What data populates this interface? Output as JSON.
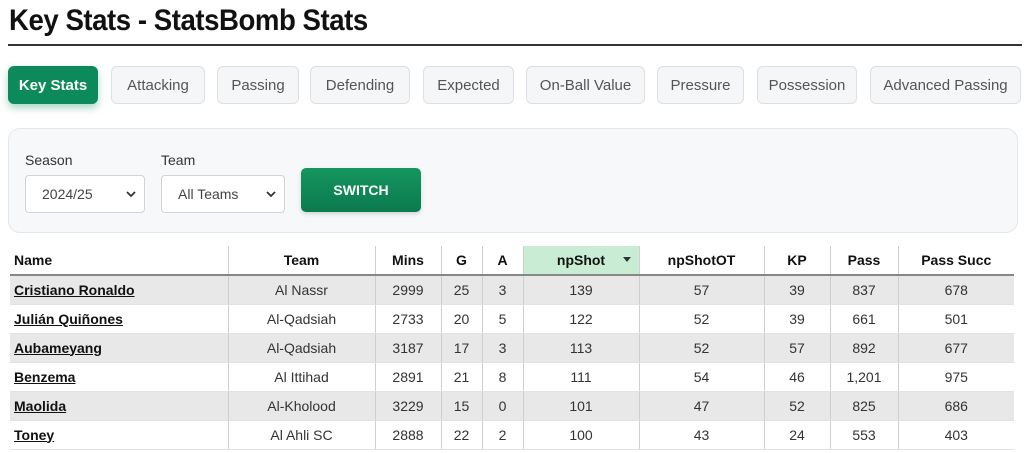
{
  "page": {
    "title": "Key Stats - StatsBomb Stats"
  },
  "tabs": [
    {
      "label": "Key Stats",
      "active": true
    },
    {
      "label": "Attacking",
      "active": false
    },
    {
      "label": "Passing",
      "active": false
    },
    {
      "label": "Defending",
      "active": false
    },
    {
      "label": "Expected",
      "active": false
    },
    {
      "label": "On-Ball Value",
      "active": false
    },
    {
      "label": "Pressure",
      "active": false
    },
    {
      "label": "Possession",
      "active": false
    },
    {
      "label": "Advanced Passing",
      "active": false
    }
  ],
  "filters": {
    "season_label": "Season",
    "season_value": "2024/25",
    "team_label": "Team",
    "team_value": "All Teams",
    "switch_label": "SWITCH"
  },
  "colors": {
    "accent": "#0d8a5b",
    "sorted_header": "#c9ecd5",
    "row_alt": "#e8e8e8"
  },
  "table": {
    "sorted_column": "npShot",
    "headers": [
      "Name",
      "Team",
      "Mins",
      "G",
      "A",
      "npShot",
      "npShotOT",
      "KP",
      "Pass",
      "Pass Succ"
    ],
    "rows": [
      [
        "Cristiano Ronaldo",
        "Al Nassr",
        "2999",
        "25",
        "3",
        "139",
        "57",
        "39",
        "837",
        "678"
      ],
      [
        "Julián Quiñones",
        "Al-Qadsiah",
        "2733",
        "20",
        "5",
        "122",
        "52",
        "39",
        "661",
        "501"
      ],
      [
        "Aubameyang",
        "Al-Qadsiah",
        "3187",
        "17",
        "3",
        "113",
        "52",
        "57",
        "892",
        "677"
      ],
      [
        "Benzema",
        "Al Ittihad",
        "2891",
        "21",
        "8",
        "111",
        "54",
        "46",
        "1,201",
        "975"
      ],
      [
        "Maolida",
        "Al-Kholood",
        "3229",
        "15",
        "0",
        "101",
        "47",
        "52",
        "825",
        "686"
      ],
      [
        "Toney",
        "Al Ahli SC",
        "2888",
        "22",
        "2",
        "100",
        "43",
        "24",
        "553",
        "403"
      ]
    ]
  }
}
